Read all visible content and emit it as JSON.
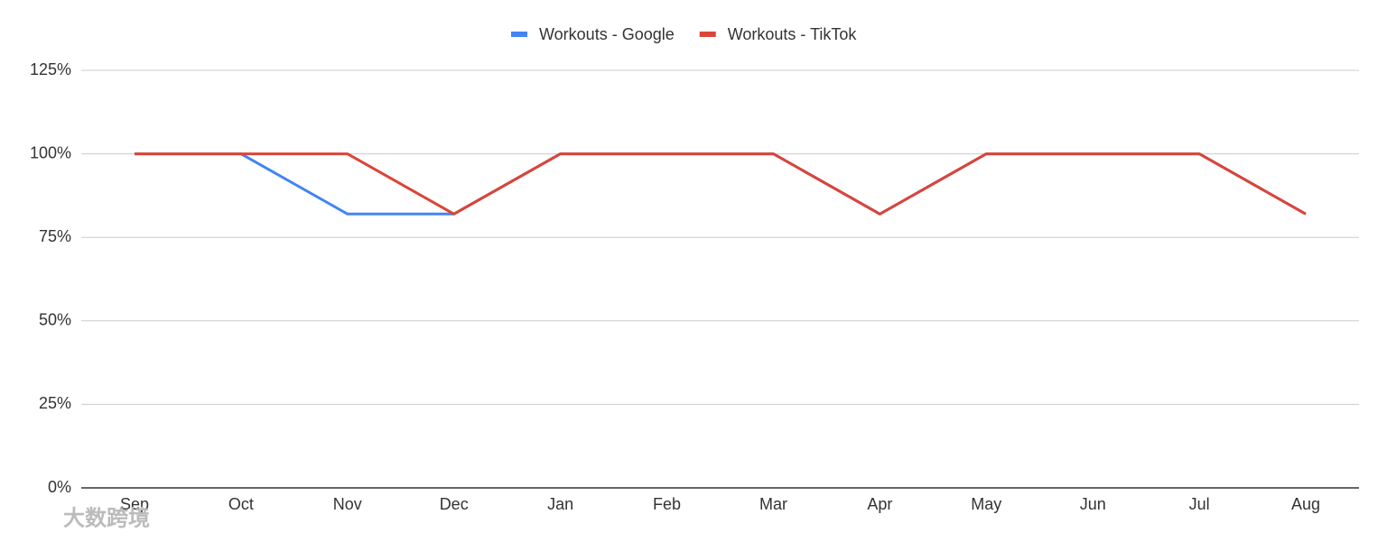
{
  "chart_data": {
    "type": "line",
    "categories": [
      "Sep",
      "Oct",
      "Nov",
      "Dec",
      "Jan",
      "Feb",
      "Mar",
      "Apr",
      "May",
      "Jun",
      "Jul",
      "Aug"
    ],
    "series": [
      {
        "name": "Workouts - Google",
        "color": "#4285f4",
        "values": [
          100,
          100,
          82,
          82,
          100,
          100,
          100,
          82,
          100,
          100,
          100,
          82
        ]
      },
      {
        "name": "Workouts - TikTok",
        "color": "#db4437",
        "values": [
          100,
          100,
          100,
          82,
          100,
          100,
          100,
          82,
          100,
          100,
          100,
          82
        ]
      }
    ],
    "ylim": [
      0,
      125
    ],
    "yticks": [
      {
        "value": 0,
        "label": "0%"
      },
      {
        "value": 25,
        "label": "25%"
      },
      {
        "value": 50,
        "label": "50%"
      },
      {
        "value": 75,
        "label": "75%"
      },
      {
        "value": 100,
        "label": "100%"
      },
      {
        "value": 125,
        "label": "125%"
      }
    ],
    "grid": true,
    "legend": "top",
    "watermark": "大数跨境"
  }
}
